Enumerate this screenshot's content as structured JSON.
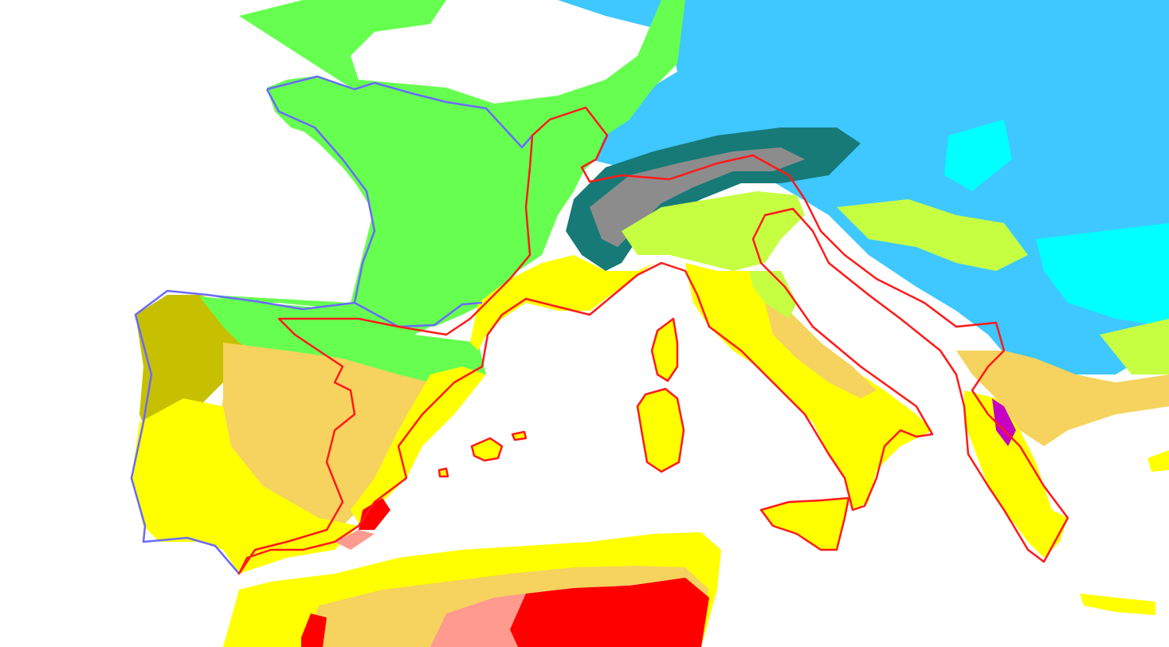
{
  "map": {
    "type": "climate-classification-map",
    "background_color": "#ffffff",
    "region_colors": {
      "green": "#66ff4f",
      "sky_blue": "#3ec8ff",
      "cyan": "#00ffff",
      "dark_teal": "#177a77",
      "gray": "#8c8c8c",
      "lime": "#c6ff42",
      "yellow": "#ffff00",
      "tan": "#f5d35e",
      "olive": "#c7c000",
      "salmon": "#ff9a8f",
      "red": "#ff0000",
      "orange": "#ffaa00",
      "magenta": "#c400c4"
    },
    "outline_colors": {
      "highlighted_area_border": "#ff1a1a",
      "highlighted_area_border_west": "#6a6aff"
    },
    "labels": []
  }
}
